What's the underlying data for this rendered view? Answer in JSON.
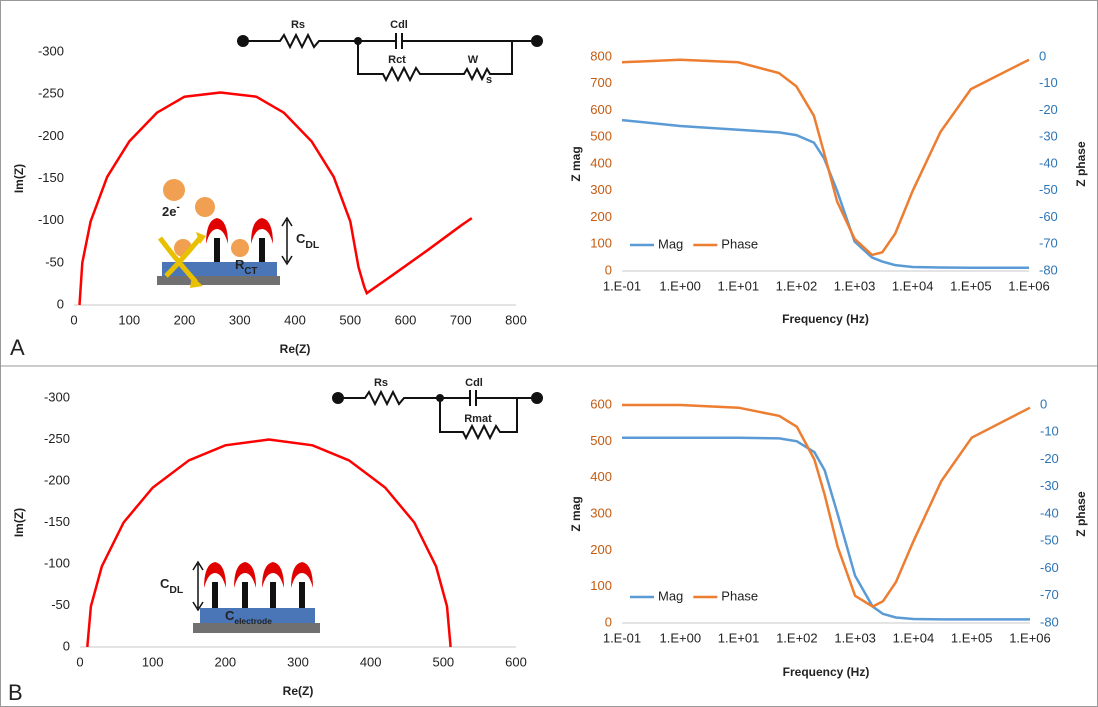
{
  "panel_labels": [
    "A",
    "B"
  ],
  "circuit_a": {
    "rs": "Rs",
    "cdl": "Cdl",
    "rct": "Rct",
    "w": "W",
    "w_sub": "s"
  },
  "circuit_b": {
    "rs": "Rs",
    "cdl": "Cdl",
    "rmat": "Rmat"
  },
  "cartoon_a": {
    "electrons": "2e",
    "electrons_sup": "-",
    "cdl": "C",
    "cdl_sub": "DL",
    "rct": "R",
    "rct_sub": "CT"
  },
  "cartoon_b": {
    "cdl": "C",
    "cdl_sub": "DL",
    "electrode": "C",
    "electrode_sub": "electrode"
  },
  "chart_data": [
    {
      "type": "line",
      "x_label": "Re(Z)",
      "y_label": "Im(Z)",
      "color": "#ff0000",
      "x": [
        10,
        15,
        30,
        60,
        100,
        150,
        200,
        265,
        330,
        380,
        430,
        470,
        500,
        515,
        525,
        530,
        580,
        640,
        700,
        720
      ],
      "values": [
        0,
        -50,
        -99,
        -152,
        -194,
        -228,
        -247,
        -252,
        -247,
        -228,
        -194,
        -152,
        -99,
        -45,
        -22,
        -14,
        -37,
        -65,
        -94,
        -103
      ],
      "xlim": [
        0,
        800
      ],
      "xticks": [
        0,
        100,
        200,
        300,
        400,
        500,
        600,
        700,
        800
      ],
      "ylim": [
        0,
        -300
      ],
      "yticks": [
        0,
        -50,
        -100,
        -150,
        -200,
        -250,
        -300
      ]
    },
    {
      "type": "line",
      "x_label": "Frequency (Hz)",
      "y_label": "Z mag",
      "y2_label": "Z phase",
      "log_x": true,
      "x": [
        0.1,
        1,
        10,
        50,
        100,
        200,
        300,
        500,
        1000,
        2000,
        3000,
        5000,
        10000,
        30000,
        100000,
        1000000
      ],
      "xlim": [
        0.1,
        1000000
      ],
      "xticks": [
        {
          "value": 0.1,
          "label": "1.E-01"
        },
        {
          "value": 1,
          "label": "1.E+00"
        },
        {
          "value": 10,
          "label": "1.E+01"
        },
        {
          "value": 100,
          "label": "1.E+02"
        },
        {
          "value": 1000,
          "label": "1.E+03"
        },
        {
          "value": 10000,
          "label": "1.E+04"
        },
        {
          "value": 100000,
          "label": "1.E+05"
        },
        {
          "value": 1000000,
          "label": "1.E+06"
        }
      ],
      "ylim": [
        0,
        800
      ],
      "yticks": [
        0,
        100,
        200,
        300,
        400,
        500,
        600,
        700,
        800
      ],
      "y2lim": [
        -80,
        0
      ],
      "y2ticks": [
        0,
        -10,
        -20,
        -30,
        -40,
        -50,
        -60,
        -70,
        -80
      ],
      "legend": "lower left",
      "series": [
        {
          "name": "Mag",
          "color": "#5b9bd5",
          "values": [
            564,
            542,
            528,
            518,
            508,
            480,
            420,
            300,
            110,
            50,
            35,
            22,
            15,
            13,
            12,
            12
          ]
        },
        {
          "name": "Phase",
          "color": "#ed7d31",
          "axis": "y2",
          "values": [
            -2,
            -1,
            -2,
            -6,
            -11,
            -22,
            -36,
            -54,
            -68,
            -74,
            -73,
            -66,
            -50,
            -28,
            -12,
            -1
          ]
        }
      ]
    },
    {
      "type": "line",
      "x_label": "Re(Z)",
      "y_label": "Im(Z)",
      "color": "#ff0000",
      "x": [
        10,
        15,
        30,
        60,
        100,
        150,
        200,
        260,
        320,
        370,
        420,
        460,
        490,
        505,
        510
      ],
      "values": [
        0,
        -49,
        -97,
        -150,
        -192,
        -225,
        -243,
        -250,
        -243,
        -225,
        -192,
        -150,
        -97,
        -49,
        0
      ],
      "xlim": [
        0,
        600
      ],
      "xticks": [
        0,
        100,
        200,
        300,
        400,
        500,
        600
      ],
      "ylim": [
        0,
        -300
      ],
      "yticks": [
        0,
        -50,
        -100,
        -150,
        -200,
        -250,
        -300
      ]
    },
    {
      "type": "line",
      "x_label": "Frequency (Hz)",
      "y_label": "Z mag",
      "y2_label": "Z phase",
      "log_x": true,
      "x": [
        0.1,
        1,
        10,
        50,
        100,
        200,
        300,
        500,
        1000,
        2000,
        3000,
        5000,
        10000,
        30000,
        100000,
        1000000
      ],
      "xlim": [
        0.1,
        1000000
      ],
      "xticks": [
        {
          "value": 0.1,
          "label": "1.E-01"
        },
        {
          "value": 1,
          "label": "1.E+00"
        },
        {
          "value": 10,
          "label": "1.E+01"
        },
        {
          "value": 100,
          "label": "1.E+02"
        },
        {
          "value": 1000,
          "label": "1.E+03"
        },
        {
          "value": 10000,
          "label": "1.E+04"
        },
        {
          "value": 100000,
          "label": "1.E+05"
        },
        {
          "value": 1000000,
          "label": "1.E+06"
        }
      ],
      "ylim": [
        0,
        600
      ],
      "yticks": [
        0,
        100,
        200,
        300,
        400,
        500,
        600
      ],
      "y2lim": [
        -80,
        0
      ],
      "y2ticks": [
        0,
        -10,
        -20,
        -30,
        -40,
        -50,
        -60,
        -70,
        -80
      ],
      "legend": "lower left",
      "series": [
        {
          "name": "Mag",
          "color": "#5b9bd5",
          "values": [
            510,
            510,
            510,
            508,
            500,
            470,
            420,
            300,
            130,
            45,
            25,
            15,
            11,
            10,
            10,
            10
          ]
        },
        {
          "name": "Phase",
          "color": "#ed7d31",
          "axis": "y2",
          "values": [
            0,
            0,
            -1,
            -4,
            -8,
            -20,
            -33,
            -52,
            -70,
            -74,
            -72,
            -65,
            -50,
            -28,
            -12,
            -1
          ]
        }
      ]
    }
  ]
}
